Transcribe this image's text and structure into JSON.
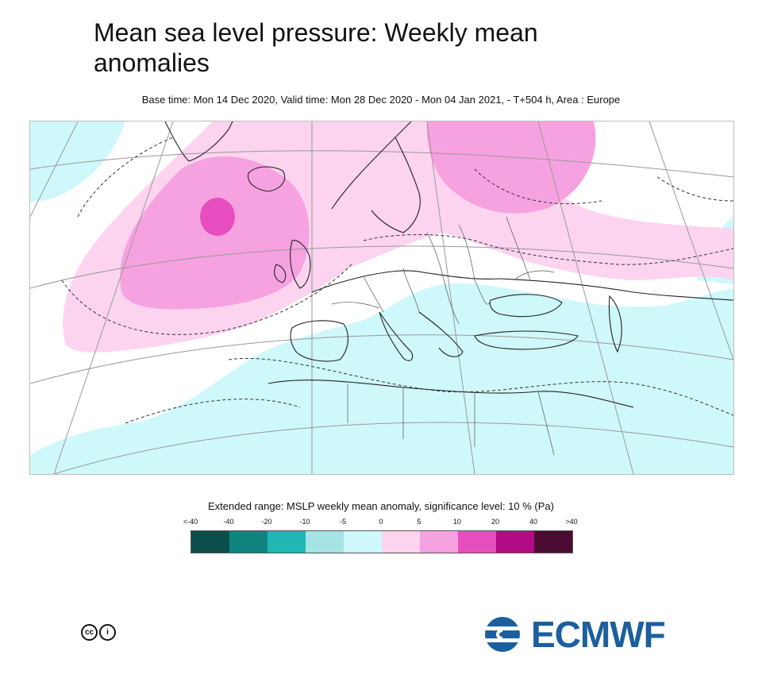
{
  "header": {
    "title": "Mean sea level pressure: Weekly mean anomalies",
    "subtitle": "Base time: Mon 14 Dec 2020, Valid time: Mon 28 Dec 2020 - Mon 04 Jan 2021, - T+504 h, Area : Europe"
  },
  "legend": {
    "title": "Extended range: MSLP weekly mean anomaly, significance level: 10 % (Pa)",
    "ticks": [
      "<-40",
      "-40",
      "-20",
      "-10",
      "-5",
      "0",
      "5",
      "10",
      "20",
      "40",
      ">40"
    ],
    "colors": [
      "#0a4d4b",
      "#108580",
      "#1fb6b4",
      "#a6e3e4",
      "#cff8fb",
      "#fcd4ef",
      "#f7a2e0",
      "#e64ec0",
      "#b20c84",
      "#4a0b33"
    ]
  },
  "map_colors": {
    "negative_weak": "#cff8fb",
    "positive_weak": "#fcd4ef",
    "positive_mid": "#f7a2e0",
    "positive_strong": "#e64ec0"
  },
  "footer": {
    "cc_label": "cc",
    "cc_person": "i",
    "logo_text": "ECMWF"
  }
}
